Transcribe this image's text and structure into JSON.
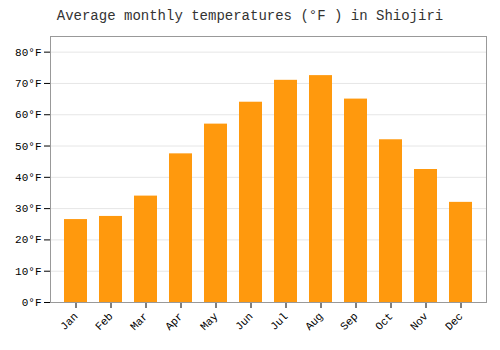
{
  "chart_data": {
    "type": "bar",
    "title": "Average monthly temperatures (°F ) in Shiojiri",
    "categories": [
      "Jan",
      "Feb",
      "Mar",
      "Apr",
      "May",
      "Jun",
      "Jul",
      "Aug",
      "Sep",
      "Oct",
      "Nov",
      "Dec"
    ],
    "values": [
      26.5,
      27.5,
      34.0,
      47.5,
      57.0,
      64.0,
      71.0,
      72.5,
      65.0,
      52.0,
      42.5,
      32.0
    ],
    "color": "#ff990d",
    "ylim": [
      0,
      85
    ],
    "yticks": [
      {
        "value": 0,
        "label": "0°F"
      },
      {
        "value": 10,
        "label": "10°F"
      },
      {
        "value": 20,
        "label": "20°F"
      },
      {
        "value": 30,
        "label": "30°F"
      },
      {
        "value": 40,
        "label": "40°F"
      },
      {
        "value": 50,
        "label": "50°F"
      },
      {
        "value": 60,
        "label": "60°F"
      },
      {
        "value": 70,
        "label": "70°F"
      },
      {
        "value": 80,
        "label": "80°F"
      }
    ],
    "grid": true
  }
}
